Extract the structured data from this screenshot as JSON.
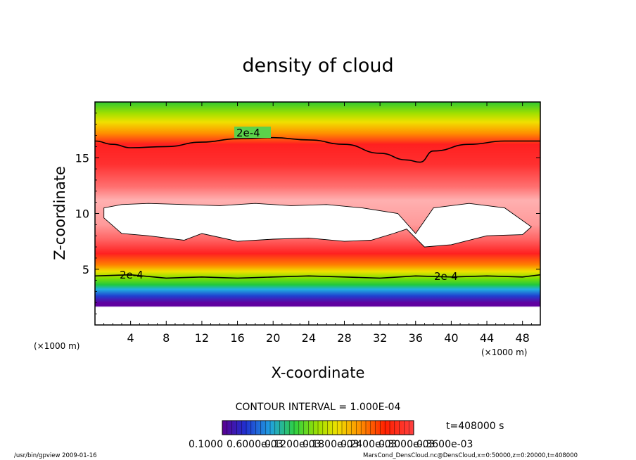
{
  "chart_data": {
    "type": "heatmap",
    "title": "density of cloud",
    "xlabel": "X-coordinate",
    "ylabel": "Z-coordinate",
    "x_units": "(×1000 m)",
    "y_units": "(×1000 m)",
    "xlim": [
      0,
      50
    ],
    "ylim": [
      0,
      20
    ],
    "x_ticks": [
      4,
      8,
      12,
      16,
      20,
      24,
      28,
      32,
      36,
      40,
      44,
      48
    ],
    "y_ticks": [
      5,
      10,
      15
    ],
    "contour_interval": "CONTOUR INTERVAL = 1.000E-04",
    "contour_labels": [
      "2e-4",
      "2e-4",
      "2e-4"
    ],
    "colorbar_labels": [
      "0.1000",
      "0.6000e-03",
      "0.1200e-03",
      "0.1800e-03",
      "0.2400e-03",
      "0.3000e-03",
      "0.3600e-03"
    ],
    "colormap": [
      "#5a0090",
      "#2030d0",
      "#20a0e0",
      "#30d040",
      "#a0e000",
      "#f0e000",
      "#ff9000",
      "#ff2000",
      "#ff6060",
      "#ffb0b0"
    ],
    "time_label": "t=408000 s",
    "upper_contour_z": [
      [
        0,
        16.5
      ],
      [
        2,
        16.2
      ],
      [
        4,
        15.9
      ],
      [
        8,
        16.0
      ],
      [
        12,
        16.4
      ],
      [
        16,
        16.7
      ],
      [
        20,
        16.8
      ],
      [
        24,
        16.6
      ],
      [
        28,
        16.2
      ],
      [
        32,
        15.4
      ],
      [
        35,
        14.8
      ],
      [
        36.5,
        14.6
      ],
      [
        38,
        15.6
      ],
      [
        42,
        16.2
      ],
      [
        46,
        16.5
      ],
      [
        50,
        16.5
      ]
    ],
    "lower_contour_z": [
      [
        0,
        4.4
      ],
      [
        4,
        4.5
      ],
      [
        8,
        4.2
      ],
      [
        12,
        4.3
      ],
      [
        16,
        4.2
      ],
      [
        20,
        4.3
      ],
      [
        24,
        4.4
      ],
      [
        28,
        4.3
      ],
      [
        32,
        4.2
      ],
      [
        36,
        4.4
      ],
      [
        40,
        4.3
      ],
      [
        44,
        4.4
      ],
      [
        48,
        4.3
      ],
      [
        50,
        4.5
      ]
    ],
    "cloud_top_z": [
      [
        1,
        10.5
      ],
      [
        3,
        10.8
      ],
      [
        6,
        10.9
      ],
      [
        10,
        10.8
      ],
      [
        14,
        10.7
      ],
      [
        18,
        10.9
      ],
      [
        22,
        10.7
      ],
      [
        26,
        10.8
      ],
      [
        30,
        10.5
      ],
      [
        34,
        10.0
      ],
      [
        36,
        8.2
      ],
      [
        38,
        10.5
      ],
      [
        42,
        10.9
      ],
      [
        46,
        10.5
      ],
      [
        49,
        8.8
      ]
    ],
    "cloud_bottom_z": [
      [
        1,
        9.6
      ],
      [
        3,
        8.2
      ],
      [
        6,
        8.0
      ],
      [
        10,
        7.6
      ],
      [
        12,
        8.2
      ],
      [
        16,
        7.5
      ],
      [
        20,
        7.7
      ],
      [
        24,
        7.8
      ],
      [
        28,
        7.5
      ],
      [
        31,
        7.6
      ],
      [
        33.5,
        8.2
      ],
      [
        35,
        8.6
      ],
      [
        37,
        7.0
      ],
      [
        40,
        7.2
      ],
      [
        44,
        8.0
      ],
      [
        48,
        8.1
      ],
      [
        49,
        8.8
      ]
    ]
  },
  "footer": {
    "program": "/usr/bin/gpview   2009-01-16",
    "source": "MarsCond_DensCloud.nc@DensCloud,x=0:50000,z=0:20000,t=408000"
  }
}
